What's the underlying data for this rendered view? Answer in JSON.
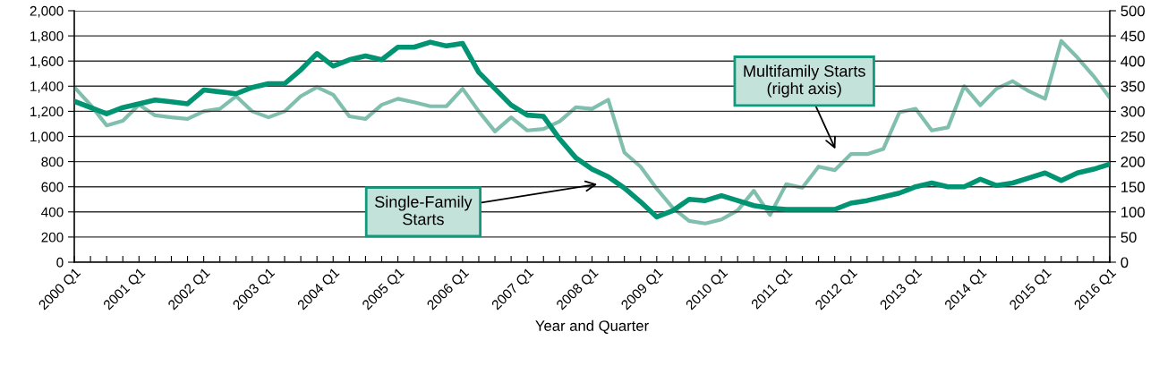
{
  "chart_data": {
    "type": "line",
    "xlabel": "Year and Quarter",
    "categories": [
      "2000 Q1",
      null,
      null,
      null,
      "2001 Q1",
      null,
      null,
      null,
      "2002 Q1",
      null,
      null,
      null,
      "2003 Q1",
      null,
      null,
      null,
      "2004 Q1",
      null,
      null,
      null,
      "2005 Q1",
      null,
      null,
      null,
      "2006 Q1",
      null,
      null,
      null,
      "2007 Q1",
      null,
      null,
      null,
      "2008 Q1",
      null,
      null,
      null,
      "2009 Q1",
      null,
      null,
      null,
      "2010 Q1",
      null,
      null,
      null,
      "2011 Q1",
      null,
      null,
      null,
      "2012 Q1",
      null,
      null,
      null,
      "2013 Q1",
      null,
      null,
      null,
      "2014 Q1",
      null,
      null,
      null,
      "2015 Q1",
      null,
      null,
      null,
      "2016 Q1"
    ],
    "series": [
      {
        "color": "#009473",
        "values": [
          1280,
          1230,
          1180,
          1230,
          1260,
          1290,
          1275,
          1260,
          1370,
          1355,
          1340,
          1390,
          1420,
          1420,
          1530,
          1660,
          1560,
          1610,
          1640,
          1610,
          1710,
          1710,
          1750,
          1720,
          1740,
          1510,
          1380,
          1250,
          1170,
          1160,
          980,
          830,
          740,
          680,
          590,
          480,
          360,
          410,
          500,
          490,
          530,
          490,
          450,
          430,
          420,
          420,
          420,
          420,
          470,
          490,
          520,
          550,
          600,
          630,
          600,
          600,
          660,
          610,
          630,
          670,
          710,
          650,
          710,
          740,
          780
        ]
      },
      {
        "color": "#80bfae",
        "axis": "y2",
        "values": [
          348,
          313,
          272,
          281,
          313,
          292,
          288,
          285,
          300,
          305,
          330,
          300,
          288,
          300,
          330,
          348,
          333,
          290,
          285,
          313,
          325,
          318,
          310,
          310,
          345,
          300,
          260,
          288,
          262,
          265,
          280,
          308,
          305,
          323,
          218,
          190,
          146,
          108,
          82,
          77,
          85,
          103,
          142,
          94,
          155,
          148,
          190,
          183,
          215,
          215,
          225,
          298,
          305,
          262,
          268,
          350,
          312,
          345,
          360,
          340,
          325,
          440,
          407,
          370,
          327
        ]
      }
    ],
    "ylim": [
      0,
      2000
    ],
    "yticks": [
      0,
      200,
      400,
      600,
      800,
      {
        "value": 1000,
        "label": "1,000"
      },
      {
        "value": 1200,
        "label": "1,200"
      },
      {
        "value": 1400,
        "label": "1,400"
      },
      {
        "value": 1600,
        "label": "1,600"
      },
      {
        "value": 1800,
        "label": "1,800"
      },
      {
        "value": 2000,
        "label": "2,000"
      }
    ],
    "y2lim": [
      0,
      500
    ],
    "y2ticks": [
      0,
      50,
      100,
      150,
      200,
      250,
      300,
      350,
      400,
      450,
      500
    ],
    "grid": "y",
    "legend": false,
    "annotations": [
      "Single-Family\nStarts",
      "Multifamily Starts\n(right axis)"
    ]
  }
}
